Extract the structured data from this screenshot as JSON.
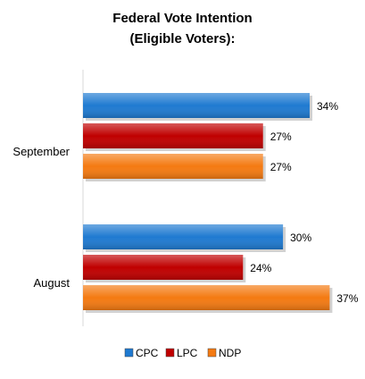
{
  "chart_data": {
    "type": "bar",
    "orientation": "horizontal",
    "title_lines": [
      "Federal Vote Intention",
      "(Eligible Voters):"
    ],
    "categories": [
      "September",
      "August"
    ],
    "series": [
      {
        "name": "CPC",
        "color": "#1f7ad1",
        "values": [
          34,
          30
        ],
        "labels": [
          "34%",
          "30%"
        ]
      },
      {
        "name": "LPC",
        "color": "#c00000",
        "values": [
          27,
          24
        ],
        "labels": [
          "27%",
          "24%"
        ]
      },
      {
        "name": "NDP",
        "color": "#f47a12",
        "values": [
          27,
          37
        ],
        "labels": [
          "27%",
          "37%"
        ]
      }
    ],
    "xlim": [
      0,
      40
    ],
    "grid": false,
    "legend": "bottom"
  }
}
